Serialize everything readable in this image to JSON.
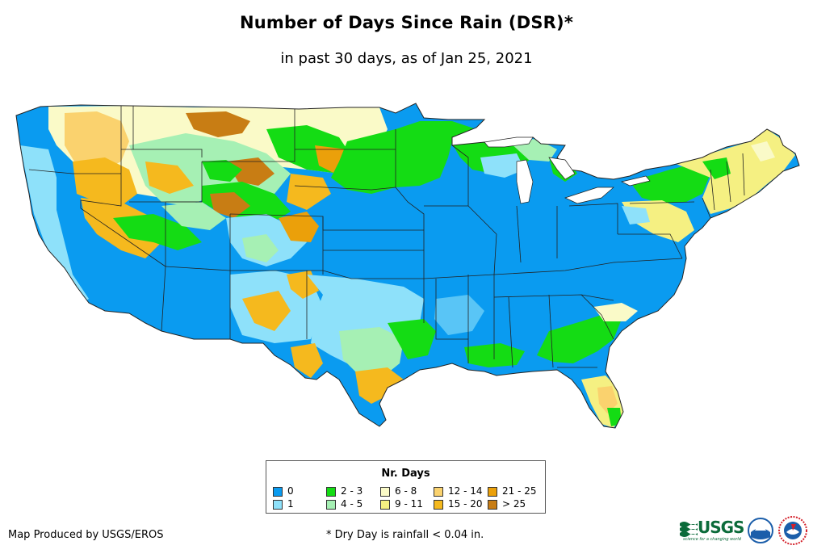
{
  "header": {
    "title": "Number of Days Since Rain (DSR)*",
    "subtitle": "in past 30 days, as of Jan 25, 2021"
  },
  "legend": {
    "title": "Nr. Days",
    "items": [
      {
        "label": "0",
        "color": "#0a9bf0"
      },
      {
        "label": "1",
        "color": "#8ee1fa"
      },
      {
        "label": "2 - 3",
        "color": "#14dc14"
      },
      {
        "label": "4 - 5",
        "color": "#a6f0b4"
      },
      {
        "label": "6 - 8",
        "color": "#fafac8"
      },
      {
        "label": "9 - 11",
        "color": "#f5f082"
      },
      {
        "label": "12 - 14",
        "color": "#fad26e"
      },
      {
        "label": "15 - 20",
        "color": "#f5b91e"
      },
      {
        "label": "21 - 25",
        "color": "#eba00a"
      },
      {
        "label": "> 25",
        "color": "#c87d14"
      }
    ]
  },
  "footer": {
    "credit": "Map Produced by USGS/EROS",
    "footnote": "* Dry Day is rainfall < 0.04 in.",
    "logo_text": "USGS",
    "logo_tagline": "science for a changing world"
  },
  "logos": {
    "usgs_color": "#0b6b3a",
    "noaa_color": "#1b5eaa",
    "nws_color": "#d4202a"
  }
}
